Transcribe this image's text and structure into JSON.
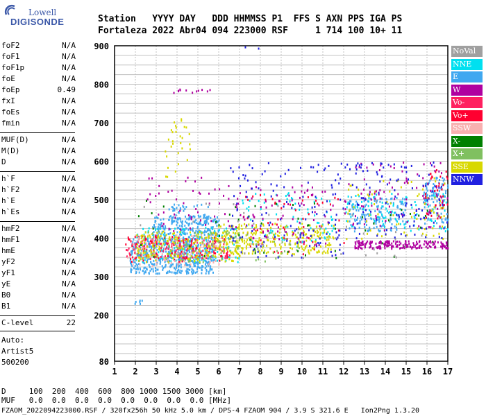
{
  "logo": {
    "brand_top": "Lowell",
    "brand_main": "DIGISONDE"
  },
  "header": {
    "row1": "Station   YYYY DAY   DDD HHMMSS P1  FFS S AXN PPS IGA PS",
    "row2": "Fortaleza 2022 Abr04 094 223000 RSF     1 714 100 10+ 11"
  },
  "params_group1": [
    {
      "label": "foF2",
      "value": "N/A"
    },
    {
      "label": "foF1",
      "value": "N/A"
    },
    {
      "label": "foF1p",
      "value": "N/A"
    },
    {
      "label": "foE",
      "value": "N/A"
    },
    {
      "label": "foEp",
      "value": "0.49"
    },
    {
      "label": "fxI",
      "value": "N/A"
    },
    {
      "label": "foEs",
      "value": "N/A"
    },
    {
      "label": "fmin",
      "value": "N/A"
    }
  ],
  "params_group2": [
    {
      "label": "MUF(D)",
      "value": "N/A"
    },
    {
      "label": "M(D)",
      "value": "N/A"
    },
    {
      "label": "D",
      "value": "N/A"
    }
  ],
  "params_group3": [
    {
      "label": "h`F",
      "value": "N/A"
    },
    {
      "label": "h`F2",
      "value": "N/A"
    },
    {
      "label": "h`E",
      "value": "N/A"
    },
    {
      "label": "h`Es",
      "value": "N/A"
    }
  ],
  "params_group4": [
    {
      "label": "hmF2",
      "value": "N/A"
    },
    {
      "label": "hmF1",
      "value": "N/A"
    },
    {
      "label": "hmE",
      "value": "N/A"
    },
    {
      "label": "yF2",
      "value": "N/A"
    },
    {
      "label": "yF1",
      "value": "N/A"
    },
    {
      "label": "yE",
      "value": "N/A"
    },
    {
      "label": "B0",
      "value": "N/A"
    },
    {
      "label": "B1",
      "value": "N/A"
    }
  ],
  "params_group5": [
    {
      "label": "C-level",
      "value": "22"
    }
  ],
  "auto": {
    "line1": "Auto:",
    "line2": "Artist5",
    "line3": "500200"
  },
  "footer": {
    "row_d": "D     100  200  400  600  800 1000 1500 3000 [km]",
    "row_muf": "MUF   0.0  0.0  0.0  0.0  0.0  0.0  0.0  0.0 [MHz]",
    "row_file": "FZAOM_2022094223000.RSF / 320fx256h 50 kHz 5.0 km / DPS-4 FZAOM 904 / 3.9 S 321.6 E   Ion2Png 1.3.20"
  },
  "legend": [
    {
      "label": "NoVal",
      "color": "#a0a0a0"
    },
    {
      "label": "NNE",
      "color": "#00e0f0"
    },
    {
      "label": "E",
      "color": "#40a8f0"
    },
    {
      "label": "W",
      "color": "#b000a0"
    },
    {
      "label": "Vo-",
      "color": "#ff2060"
    },
    {
      "label": "Vo+",
      "color": "#ff0030"
    },
    {
      "label": "SSW",
      "color": "#f8b0b0"
    },
    {
      "label": "X-",
      "color": "#008000"
    },
    {
      "label": "X+",
      "color": "#80c060"
    },
    {
      "label": "SSE",
      "color": "#d8d800"
    },
    {
      "label": "NNW",
      "color": "#2020e0"
    }
  ],
  "chart_data": {
    "type": "scatter",
    "title": "",
    "xlabel": "",
    "ylabel": "",
    "xlim": [
      1,
      17
    ],
    "ylim": [
      80,
      900
    ],
    "x_ticks": [
      "1",
      "2",
      "3",
      "4",
      "5",
      "6",
      "7",
      "8",
      "9",
      "10",
      "11",
      "12",
      "13",
      "14",
      "15",
      "16",
      "17"
    ],
    "y_ticks": [
      "80",
      "200",
      "300",
      "400",
      "500",
      "600",
      "700",
      "800",
      "900"
    ],
    "grid": true,
    "legend_placement": "right",
    "clusters": [
      {
        "series": "E",
        "x": [
          1.7,
          5.8
        ],
        "y": [
          310,
          400
        ],
        "n": 520
      },
      {
        "series": "E",
        "x": [
          2.8,
          6.0
        ],
        "y": [
          400,
          460
        ],
        "n": 220
      },
      {
        "series": "E",
        "x": [
          3.5,
          5.5
        ],
        "y": [
          440,
          490
        ],
        "n": 60
      },
      {
        "series": "E",
        "x": [
          1.8,
          2.4
        ],
        "y": [
          230,
          245
        ],
        "n": 6
      },
      {
        "series": "E",
        "x": [
          12.2,
          15.0
        ],
        "y": [
          420,
          510
        ],
        "n": 160
      },
      {
        "series": "E",
        "x": [
          15.8,
          17.0
        ],
        "y": [
          440,
          560
        ],
        "n": 100
      },
      {
        "series": "NNE",
        "x": [
          2.0,
          7.0
        ],
        "y": [
          340,
          430
        ],
        "n": 120
      },
      {
        "series": "NNE",
        "x": [
          7.0,
          11.5
        ],
        "y": [
          380,
          520
        ],
        "n": 80
      },
      {
        "series": "NNE",
        "x": [
          12.0,
          17.0
        ],
        "y": [
          420,
          520
        ],
        "n": 90
      },
      {
        "series": "Vo-",
        "x": [
          1.5,
          6.5
        ],
        "y": [
          350,
          400
        ],
        "n": 140
      },
      {
        "series": "Vo+",
        "x": [
          1.5,
          6.5
        ],
        "y": [
          340,
          410
        ],
        "n": 90
      },
      {
        "series": "Vo+",
        "x": [
          7.0,
          12.0
        ],
        "y": [
          360,
          520
        ],
        "n": 60
      },
      {
        "series": "Vo+",
        "x": [
          15.8,
          17.0
        ],
        "y": [
          450,
          580
        ],
        "n": 40
      },
      {
        "series": "SSW",
        "x": [
          1.6,
          6.0
        ],
        "y": [
          330,
          410
        ],
        "n": 100
      },
      {
        "series": "SSE",
        "x": [
          2.0,
          7.0
        ],
        "y": [
          340,
          420
        ],
        "n": 200
      },
      {
        "series": "SSE",
        "x": [
          5.8,
          11.5
        ],
        "y": [
          360,
          440
        ],
        "n": 260
      },
      {
        "series": "SSE",
        "x": [
          3.4,
          4.6
        ],
        "y": [
          550,
          720
        ],
        "n": 30
      },
      {
        "series": "SSE",
        "x": [
          12.0,
          17.0
        ],
        "y": [
          400,
          560
        ],
        "n": 70
      },
      {
        "series": "X+",
        "x": [
          2.0,
          10.0
        ],
        "y": [
          340,
          420
        ],
        "n": 90
      },
      {
        "series": "X-",
        "x": [
          2.0,
          16.5
        ],
        "y": [
          350,
          500
        ],
        "n": 50
      },
      {
        "series": "W",
        "x": [
          2.5,
          7.5
        ],
        "y": [
          420,
          560
        ],
        "n": 60
      },
      {
        "series": "W",
        "x": [
          7.5,
          11.5
        ],
        "y": [
          380,
          540
        ],
        "n": 70
      },
      {
        "series": "W",
        "x": [
          12.5,
          17.0
        ],
        "y": [
          375,
          395
        ],
        "n": 180
      },
      {
        "series": "W",
        "x": [
          12.0,
          17.0
        ],
        "y": [
          420,
          600
        ],
        "n": 90
      },
      {
        "series": "W",
        "x": [
          3.6,
          5.6
        ],
        "y": [
          780,
          790
        ],
        "n": 12
      },
      {
        "series": "NNW",
        "x": [
          6.5,
          12.0
        ],
        "y": [
          350,
          600
        ],
        "n": 130
      },
      {
        "series": "NNW",
        "x": [
          12.0,
          17.0
        ],
        "y": [
          400,
          600
        ],
        "n": 110
      },
      {
        "series": "NNW",
        "x": [
          7.0,
          8.0
        ],
        "y": [
          895,
          900
        ],
        "n": 2
      },
      {
        "series": "NoVal",
        "x": [
          2.0,
          16.0
        ],
        "y": [
          350,
          500
        ],
        "n": 40
      }
    ]
  }
}
